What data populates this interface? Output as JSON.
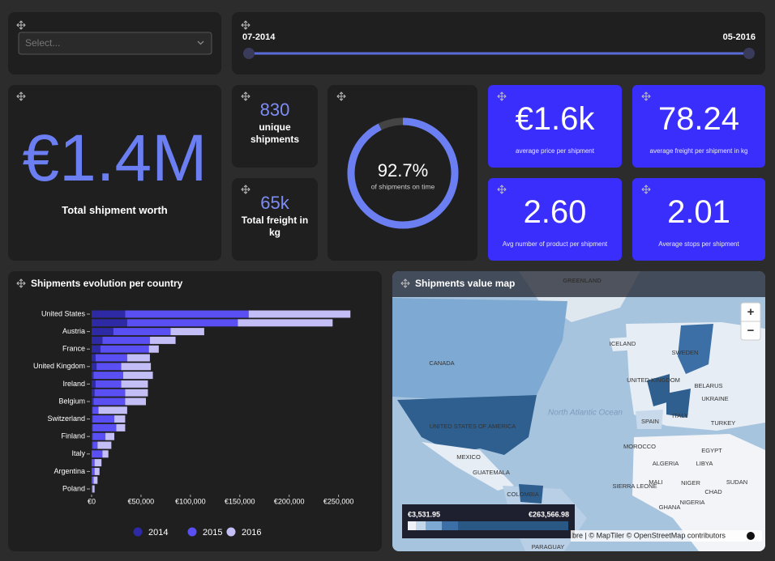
{
  "filter": {
    "placeholder": "Select..."
  },
  "date_range": {
    "start": "07-2014",
    "end": "05-2016"
  },
  "total_worth": {
    "value": "€1.4M",
    "label": "Total shipment worth"
  },
  "unique_shipments": {
    "value": "830",
    "label": "unique shipments"
  },
  "total_freight": {
    "value": "65k",
    "label": "Total freight in kg"
  },
  "gauge": {
    "value": 92.7,
    "value_label": "92.7%",
    "label": "of shipments on time"
  },
  "tiles": [
    {
      "value": "€1.6k",
      "label": "average price per shipment"
    },
    {
      "value": "78.24",
      "label": "average freight per shipment in kg"
    },
    {
      "value": "2.60",
      "label": "Avg number of product per shipment"
    },
    {
      "value": "2.01",
      "label": "Average stops per shipment"
    }
  ],
  "chart_data": {
    "type": "bar",
    "orientation": "horizontal",
    "stacked": true,
    "title": "Shipments evolution per country",
    "categories": [
      "United States",
      null,
      "Austria",
      null,
      "France",
      null,
      "United Kingdom",
      null,
      "Ireland",
      null,
      "Belgium",
      null,
      "Switzerland",
      null,
      "Finland",
      null,
      "Italy",
      null,
      "Argentina",
      null,
      "Poland"
    ],
    "series": [
      {
        "name": "2014",
        "color": "#2e2aa6",
        "values": [
          34000,
          36000,
          22000,
          11000,
          9000,
          4000,
          5000,
          2000,
          4000,
          3000,
          2000,
          1000,
          1000,
          1000,
          1000,
          1000,
          0,
          0,
          0,
          0,
          0
        ]
      },
      {
        "name": "2015",
        "color": "#5a4ff2",
        "values": [
          125000,
          112000,
          58000,
          48000,
          49000,
          32000,
          25000,
          30000,
          26000,
          31000,
          32000,
          6000,
          22000,
          24000,
          13000,
          5000,
          11000,
          3000,
          3000,
          2000,
          1000
        ]
      },
      {
        "name": "2016",
        "color": "#c3bff6",
        "values": [
          103000,
          96000,
          34000,
          26000,
          10000,
          23000,
          30000,
          30000,
          27000,
          23000,
          21000,
          29000,
          11000,
          9000,
          9000,
          14000,
          6000,
          7000,
          5000,
          4000,
          2000
        ]
      }
    ],
    "xlim": [
      0,
      270000
    ],
    "xticks": [
      {
        "value": 0,
        "label": "€0"
      },
      {
        "value": 50000,
        "label": "€50,000"
      },
      {
        "value": 100000,
        "label": "€100,000"
      },
      {
        "value": 150000,
        "label": "€150,000"
      },
      {
        "value": 200000,
        "label": "€200,000"
      },
      {
        "value": 250000,
        "label": "€250,000"
      }
    ],
    "legend": "bottom"
  },
  "map": {
    "title": "Shipments value map",
    "zoom_in": "+",
    "zoom_out": "−",
    "legend_min": "€3,531.95",
    "legend_max": "€263,566.98",
    "attribution": "bre | © MapTiler © OpenStreetMap contributors",
    "labels": [
      "GREENLAND",
      "CANADA",
      "ICELAND",
      "SWEDEN",
      "UNITED KINGDOM",
      "BELARUS",
      "UKRAINE",
      "SPAIN",
      "ITALY",
      "TURKEY",
      "UNITED STATES OF AMERICA",
      "MEXICO",
      "GUATEMALA",
      "COLOMBIA",
      "MOROCCO",
      "EGYPT",
      "ALGERIA",
      "LIBYA",
      "MALI",
      "NIGER",
      "SUDAN",
      "CHAD",
      "SIERRA LEONE",
      "NIGERIA",
      "GHANA",
      "PARAGUAY",
      "North Atlantic Ocean"
    ]
  }
}
